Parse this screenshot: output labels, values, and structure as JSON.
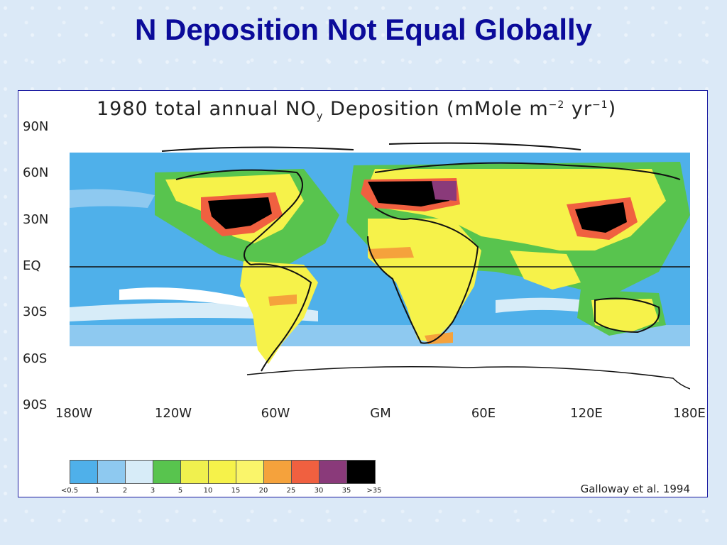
{
  "slide": {
    "title": "N Deposition Not Equal Globally"
  },
  "map": {
    "title": "1980 total annual NO",
    "title_sub": "y",
    "title_rest": " Deposition (mMole m",
    "title_exp1": "−2",
    "title_mid": " yr",
    "title_exp2": "−1",
    "title_end": ")",
    "lat_labels": [
      "90N",
      "60N",
      "30N",
      "EQ",
      "30S",
      "60S",
      "90S"
    ],
    "lon_labels": [
      "180W",
      "120W",
      "60W",
      "GM",
      "60E",
      "120E",
      "180E"
    ]
  },
  "legend": {
    "tick_labels": [
      "<0.5",
      "1",
      "2",
      "3",
      "5",
      "10",
      "15",
      "20",
      "25",
      "30",
      "35",
      ">35"
    ],
    "colors": [
      "#4fb0ea",
      "#8ec9f0",
      "#d7ecf8",
      "#58c44e",
      "#f0f04e",
      "#f6f24a",
      "#faf56a",
      "#f5a23c",
      "#f06040",
      "#8a3a7a",
      "#000000"
    ]
  },
  "citation": "Galloway et al. 1994",
  "map_colors": {
    "ocean_high": "#4fb0ea",
    "ocean_mid": "#8ec9f0",
    "ocean_low": "#d7ecf8",
    "polar": "#ffffff",
    "green": "#58c44e",
    "yellow": "#f6f24a",
    "orange": "#f5a23c",
    "red": "#f06040",
    "purple": "#8a3a7a",
    "black": "#000000"
  }
}
